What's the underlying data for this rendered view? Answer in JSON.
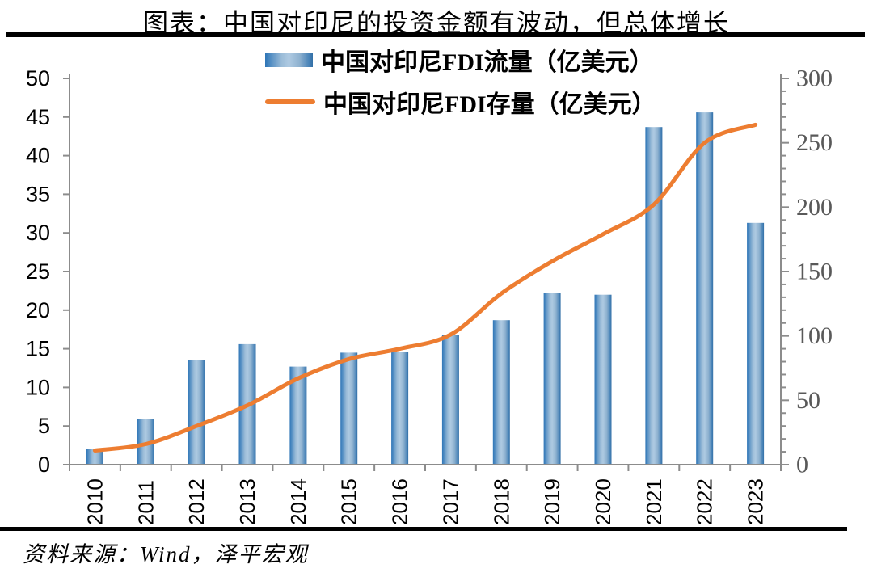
{
  "title": "图表：中国对印尼的投资金额有波动，但总体增长",
  "source": "资料来源：Wind，泽平宏观",
  "colors": {
    "accent_line": "#ED7D31",
    "bar_gradient": [
      [
        0,
        "#2E75B6"
      ],
      [
        0.08,
        "#4786BF"
      ],
      [
        0.35,
        "#9BBCD8"
      ],
      [
        0.5,
        "#AECAE2"
      ],
      [
        0.72,
        "#8FB2D0"
      ],
      [
        0.92,
        "#4A84B8"
      ],
      [
        1,
        "#326FA6"
      ]
    ],
    "axis_line": "#8C8C8C",
    "left_label": "#000000",
    "right_label": "#595959",
    "year_label": "#000000",
    "rule": "#000000"
  },
  "chart_data": {
    "type": "combo",
    "title": "图表：中国对印尼的投资金额有波动，但总体增长",
    "categories": [
      "2010",
      "2011",
      "2012",
      "2013",
      "2014",
      "2015",
      "2016",
      "2017",
      "2018",
      "2019",
      "2020",
      "2021",
      "2022",
      "2023"
    ],
    "series": [
      {
        "name": "中国对印尼FDI流量（亿美元）",
        "type": "bar",
        "axis": "left",
        "values": [
          2.0,
          5.9,
          13.6,
          15.6,
          12.7,
          14.5,
          14.6,
          16.8,
          18.7,
          22.2,
          22.0,
          43.7,
          45.6,
          31.3
        ]
      },
      {
        "name": "中国对印尼FDI存量（亿美元）",
        "type": "line",
        "axis": "right",
        "values": [
          11,
          16,
          30,
          46,
          67,
          82,
          90,
          101,
          133,
          158,
          179,
          202,
          250,
          264
        ]
      }
    ],
    "left_axis": {
      "min": 0,
      "max": 50,
      "step": 5,
      "tick_labels": [
        "0",
        "5",
        "10",
        "15",
        "20",
        "25",
        "30",
        "35",
        "40",
        "45",
        "50"
      ]
    },
    "right_axis": {
      "min": 0,
      "max": 300,
      "major_step": 50,
      "minor_step": 10,
      "tick_labels": [
        "0",
        "50",
        "100",
        "150",
        "200",
        "250",
        "300"
      ]
    },
    "legend_position": "top-center",
    "grid": false,
    "smooth_line": true
  }
}
